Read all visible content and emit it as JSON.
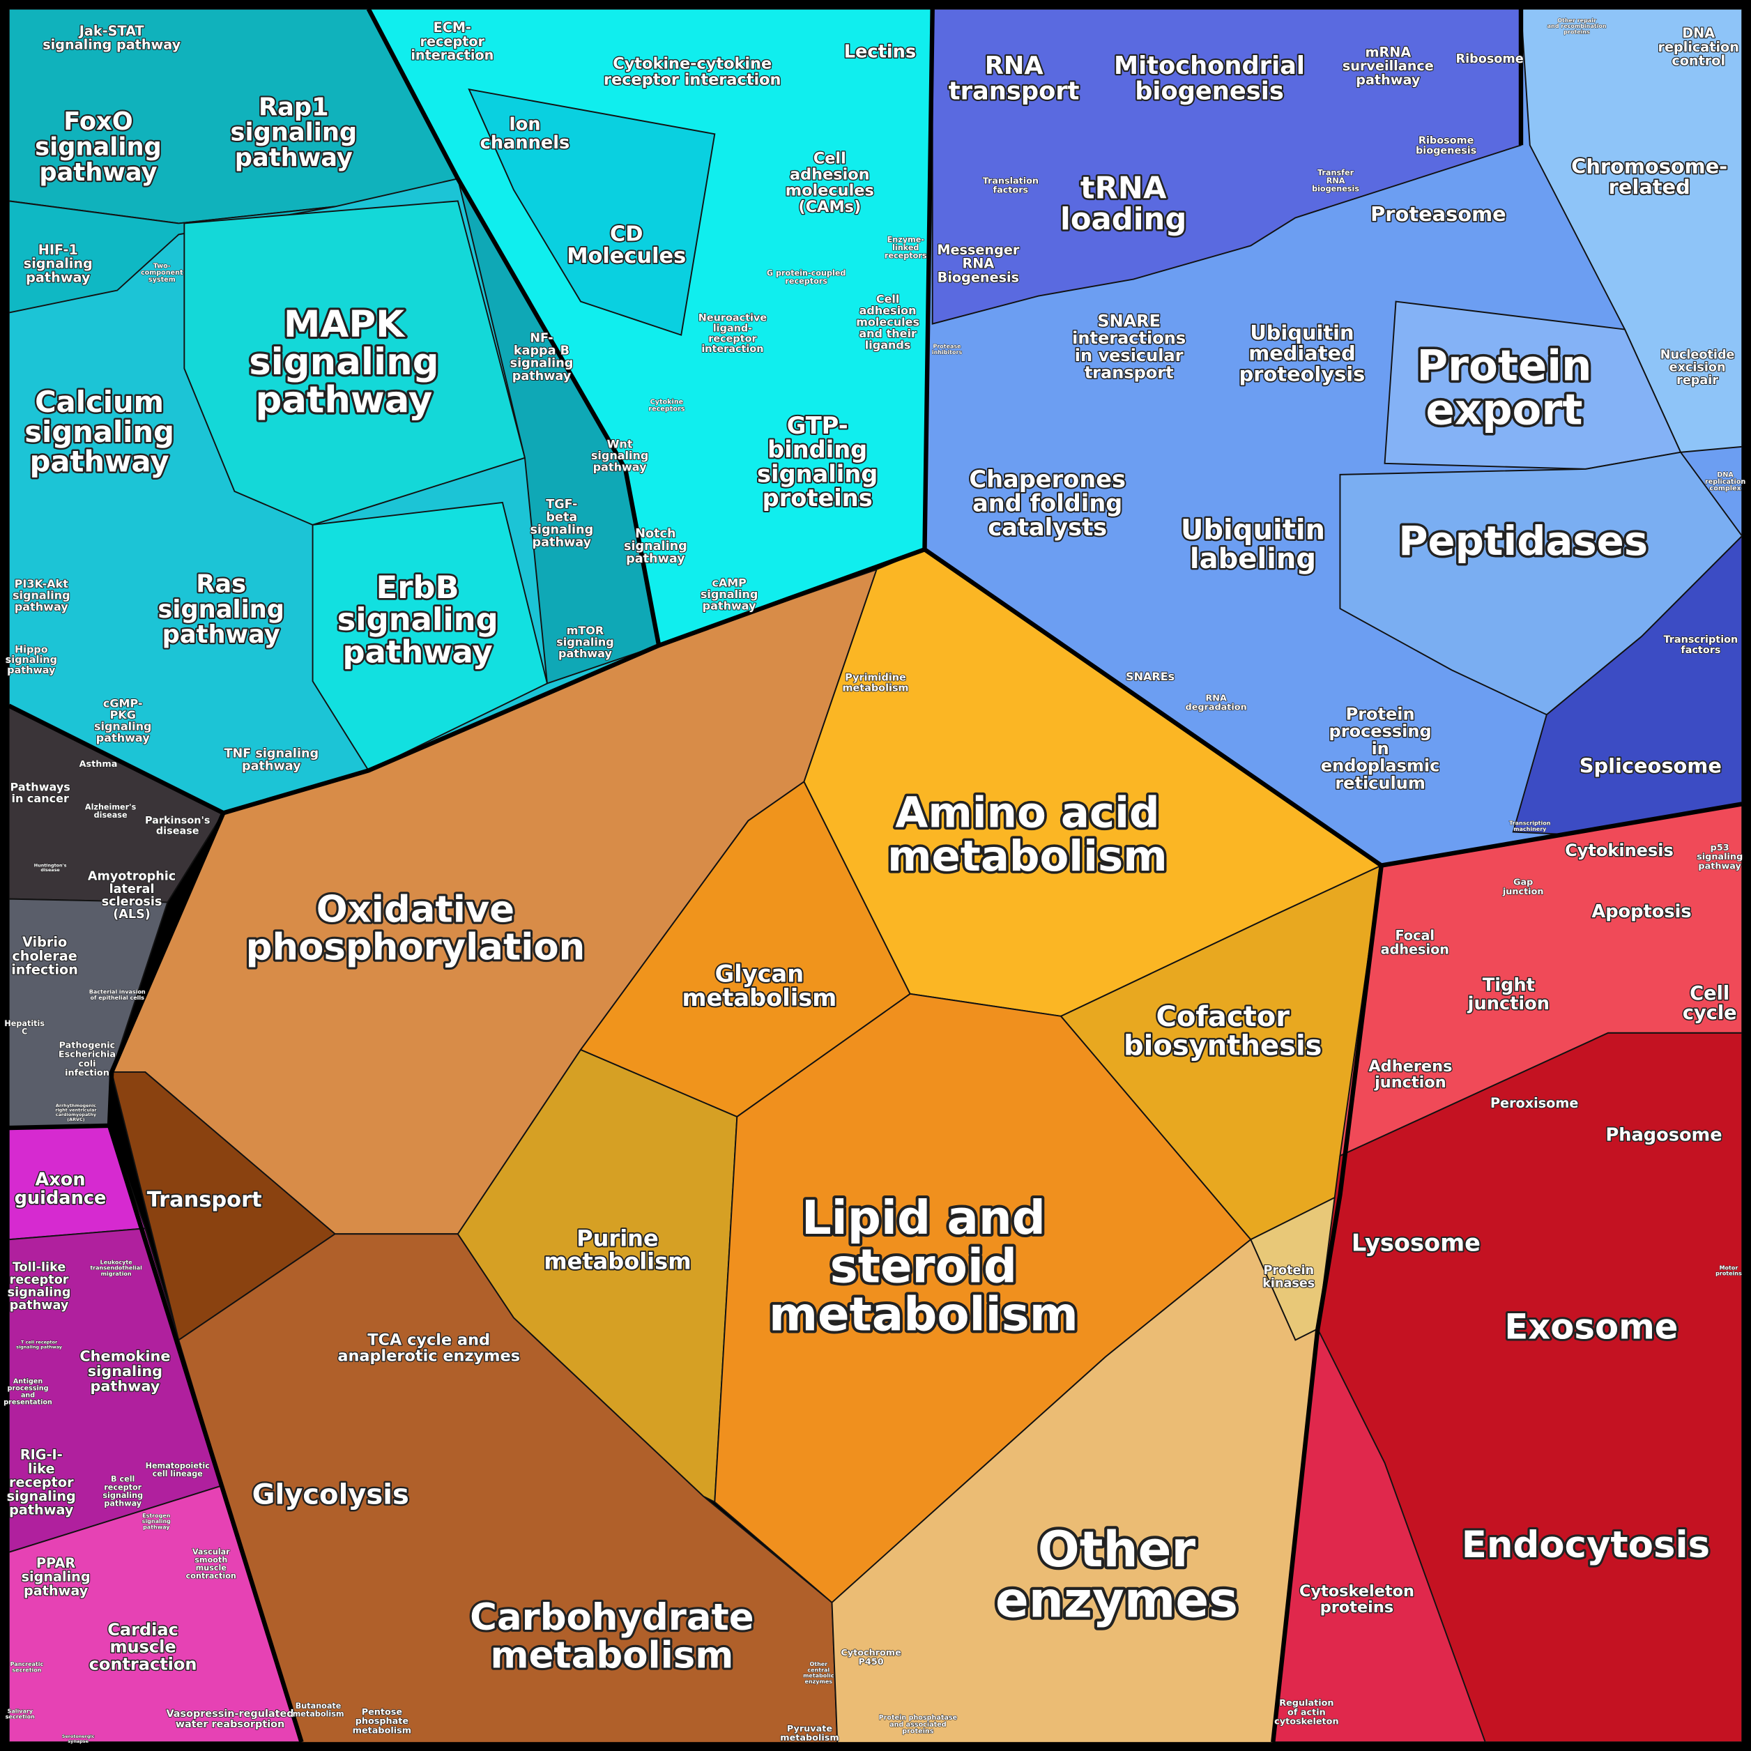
{
  "labels": [
    [
      "Jak-STAT",
      "signaling pathway"
    ],
    [
      "FoxO",
      "signaling",
      "pathway"
    ],
    [
      "Rap1",
      "signaling",
      "pathway"
    ],
    [
      "HIF-1",
      "signaling",
      "pathway"
    ],
    [
      "Two-",
      "component",
      "system"
    ],
    [
      "MAPK",
      "signaling",
      "pathway"
    ],
    [
      "Calcium",
      "signaling",
      "pathway"
    ],
    [
      "NF-",
      "kappa B",
      "signaling",
      "pathway"
    ],
    [
      "Ras",
      "signaling",
      "pathway"
    ],
    [
      "ErbB",
      "signaling",
      "pathway"
    ],
    [
      "PI3K-Akt",
      "signaling",
      "pathway"
    ],
    [
      "Hippo",
      "signaling",
      "pathway"
    ],
    [
      "cGMP-",
      "PKG",
      "signaling",
      "pathway"
    ],
    [
      "TNF signaling",
      "pathway"
    ],
    [
      "mTOR",
      "signaling",
      "pathway"
    ],
    [
      "TGF-",
      "beta",
      "signaling",
      "pathway"
    ],
    [
      "Wnt",
      "signaling",
      "pathway"
    ],
    [
      "Notch",
      "signaling",
      "pathway"
    ],
    [
      "cAMP",
      "signaling",
      "pathway"
    ],
    [
      "ECM-",
      "receptor",
      "interaction"
    ],
    [
      "Ion",
      "channels"
    ],
    [
      "Cytokine-cytokine",
      "receptor interaction"
    ],
    [
      "Lectins"
    ],
    [
      "CD",
      "Molecules"
    ],
    [
      "Cell",
      "adhesion",
      "molecules",
      "(CAMs)"
    ],
    [
      "Enzyme-",
      "linked",
      "receptors"
    ],
    [
      "G protein-coupled",
      "receptors"
    ],
    [
      "Cell",
      "adhesion",
      "molecules",
      "and their",
      "ligands"
    ],
    [
      "Neuroactive",
      "ligand-",
      "receptor",
      "interaction"
    ],
    [
      "Cytokine",
      "receptors"
    ],
    [
      "GTP-",
      "binding",
      "signaling",
      "proteins"
    ],
    [
      "RNA",
      "transport"
    ],
    [
      "Mitochondrial",
      "biogenesis"
    ],
    [
      "mRNA",
      "surveillance",
      "pathway"
    ],
    [
      "Ribosome"
    ],
    [
      "DNA",
      "replication",
      "control"
    ],
    [
      "Other repair",
      "and recombination",
      "proteins"
    ],
    [
      "Ribosome",
      "biogenesis"
    ],
    [
      "Translation",
      "factors"
    ],
    [
      "tRNA",
      "loading"
    ],
    [
      "Transfer",
      "RNA",
      "biogenesis"
    ],
    [
      "Messenger",
      "RNA",
      "Biogenesis"
    ],
    [
      "Chromosome-",
      "related"
    ],
    [
      "Proteasome"
    ],
    [
      "Protease",
      "inhibitors"
    ],
    [
      "SNARE",
      "interactions",
      "in vesicular",
      "transport"
    ],
    [
      "Ubiquitin",
      "mediated",
      "proteolysis"
    ],
    [
      "Protein",
      "export"
    ],
    [
      "Nucleotide",
      "excision",
      "repair"
    ],
    [
      "DNA",
      "replication",
      "complex"
    ],
    [
      "Chaperones",
      "and folding",
      "catalysts"
    ],
    [
      "Ubiquitin",
      "labeling"
    ],
    [
      "Peptidases"
    ],
    [
      "Transcription",
      "factors"
    ],
    [
      "SNAREs"
    ],
    [
      "RNA",
      "degradation"
    ],
    [
      "Protein",
      "processing",
      "in",
      "endoplasmic",
      "reticulum"
    ],
    [
      "Spliceosome"
    ],
    [
      "Transcription",
      "machinery"
    ],
    [
      "Asthma"
    ],
    [
      "Pathways",
      "in cancer"
    ],
    [
      "Alzheimer's",
      "disease"
    ],
    [
      "Parkinson's",
      "disease"
    ],
    [
      "Huntington's",
      "disease"
    ],
    [
      "Amyotrophic",
      "lateral",
      "sclerosis",
      "(ALS)"
    ],
    [
      "Vibrio",
      "cholerae",
      "infection"
    ],
    [
      "Bacterial invasion",
      "of epithelial cells"
    ],
    [
      "Hepatitis",
      "C"
    ],
    [
      "Pathogenic",
      "Escherichia",
      "coli",
      "infection"
    ],
    [
      "Arrhythmogenic",
      "right ventricular",
      "cardiomyopathy",
      "(ARVC)"
    ],
    [
      "Axon",
      "guidance"
    ],
    [
      "Leukocyte",
      "transendothelial",
      "migration"
    ],
    [
      "Toll-like",
      "receptor",
      "signaling",
      "pathway"
    ],
    [
      "T cell receptor",
      "signaling pathway"
    ],
    [
      "Chemokine",
      "signaling",
      "pathway"
    ],
    [
      "Antigen",
      "processing",
      "and",
      "presentation"
    ],
    [
      "RIG-I-",
      "like",
      "receptor",
      "signaling",
      "pathway"
    ],
    [
      "B cell",
      "receptor",
      "signaling",
      "pathway"
    ],
    [
      "Hematopoietic",
      "cell lineage"
    ],
    [
      "Estrogen",
      "signaling",
      "pathway"
    ],
    [
      "PPAR",
      "signaling",
      "pathway"
    ],
    [
      "Vascular",
      "smooth",
      "muscle",
      "contraction"
    ],
    [
      "Cardiac",
      "muscle",
      "contraction"
    ],
    [
      "Pancreatic",
      "secretion"
    ],
    [
      "Salivary",
      "secretion"
    ],
    [
      "Serotonergic",
      "synapse"
    ],
    [
      "Vasopressin-regulated",
      "water reabsorption"
    ],
    [
      "Pyrimidine",
      "metabolism"
    ],
    [
      "Oxidative",
      "phosphorylation"
    ],
    [
      "Amino acid",
      "metabolism"
    ],
    [
      "Glycan",
      "metabolism"
    ],
    [
      "Cofactor",
      "biosynthesis"
    ],
    [
      "Transport"
    ],
    [
      "Purine",
      "metabolism"
    ],
    [
      "Lipid and",
      "steroid",
      "metabolism"
    ],
    [
      "Protein",
      "kinases"
    ],
    [
      "TCA cycle and",
      "anaplerotic enzymes"
    ],
    [
      "Glycolysis"
    ],
    [
      "Other",
      "enzymes"
    ],
    [
      "Carbohydrate",
      "metabolism"
    ],
    [
      "Cytochrome",
      "P450"
    ],
    [
      "Protein phosphatase",
      "and associated",
      "proteins"
    ],
    [
      "Other",
      "central",
      "metabolic",
      "enzymes"
    ],
    [
      "Butanoate",
      "metabolism"
    ],
    [
      "Pentose",
      "phosphate",
      "metabolism"
    ],
    [
      "Pyruvate",
      "metabolism"
    ],
    [
      "Cytokinesis"
    ],
    [
      "p53",
      "signaling",
      "pathway"
    ],
    [
      "Gap",
      "junction"
    ],
    [
      "Apoptosis"
    ],
    [
      "Focal",
      "adhesion"
    ],
    [
      "Tight",
      "junction"
    ],
    [
      "Cell",
      "cycle"
    ],
    [
      "Adherens",
      "junction"
    ],
    [
      "Peroxisome"
    ],
    [
      "Phagosome"
    ],
    [
      "Lysosome"
    ],
    [
      "Motor",
      "proteins"
    ],
    [
      "Exosome"
    ],
    [
      "Endocytosis"
    ],
    [
      "Cytoskeleton",
      "proteins"
    ],
    [
      "Regulation",
      "of actin",
      "cytoskeleton"
    ]
  ]
}
